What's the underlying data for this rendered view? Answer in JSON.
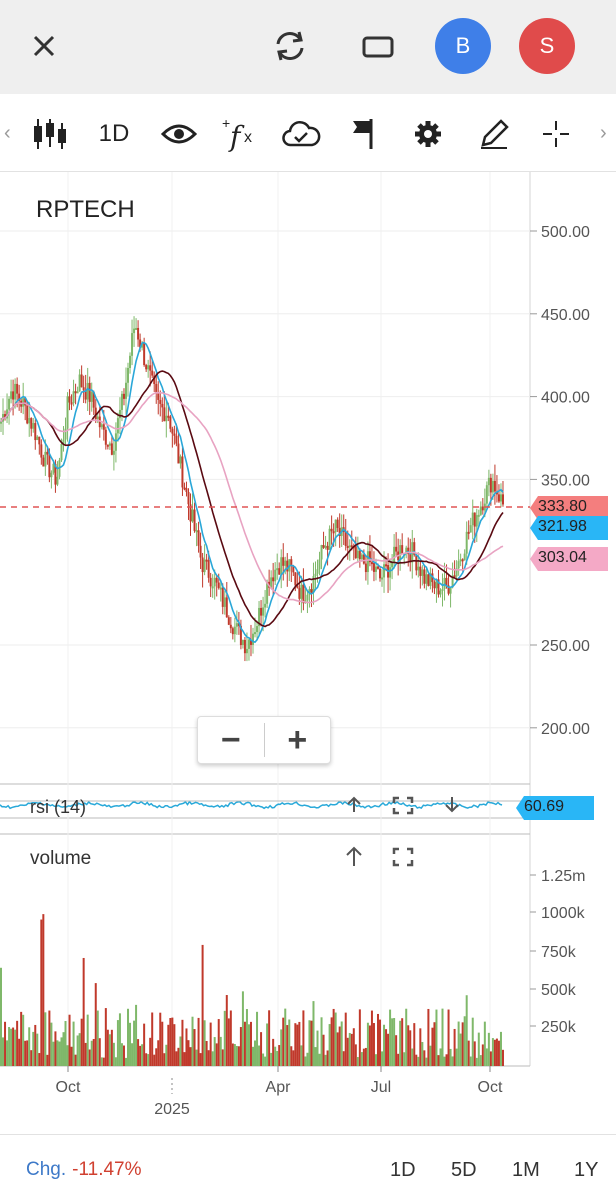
{
  "topbar": {
    "avatar_b": "B",
    "avatar_s": "S",
    "avatar_b_color": "#3f7fe8",
    "avatar_s_color": "#e04b4b"
  },
  "toolbar": {
    "interval": "1D",
    "icons": [
      "candlestick-icon",
      "eye-icon",
      "function-icon",
      "cloud-check-icon",
      "flag-icon",
      "gear-icon",
      "pencil-icon",
      "crosshair-icon"
    ]
  },
  "chart": {
    "symbol": "RPTECH",
    "last_price": "333.80",
    "ema_label": "321.98",
    "sma_label": "303.04",
    "rsi_name": "rsi (14)",
    "rsi_value": "60.69",
    "volume_name": "volume",
    "colors": {
      "up": "#7fb86a",
      "down": "#c0392b",
      "ema_fast": "#2aa7d8",
      "ma_dark": "#5a0a12",
      "ma_pink": "#e8a3c2",
      "last_price_tag": "#f47e7e",
      "ema_tag": "#29b6f6",
      "sma_tag": "#f4a9c6"
    }
  },
  "chart_data": {
    "type": "candlestick",
    "y_axis": {
      "ticks": [
        "500.00",
        "450.00",
        "400.00",
        "350.00",
        "250.00",
        "200.00"
      ],
      "range": [
        165,
        520
      ]
    },
    "volume_axis": {
      "ticks": [
        "1.25m",
        "1000k",
        "750k",
        "500k",
        "250k"
      ]
    },
    "x_ticks": [
      "Oct",
      "Apr",
      "Jul",
      "Oct"
    ],
    "x_year": "2025",
    "approx_close_path": [
      385,
      405,
      395,
      380,
      360,
      350,
      395,
      410,
      400,
      380,
      370,
      400,
      445,
      420,
      395,
      390,
      360,
      330,
      300,
      290,
      275,
      260,
      250,
      265,
      290,
      300,
      295,
      280,
      290,
      310,
      320,
      310,
      300,
      300,
      290,
      300,
      310,
      305,
      290,
      285,
      285,
      300,
      320,
      335,
      350,
      335
    ]
  },
  "bottombar": {
    "change_label": "Chg.",
    "change_value": "-11.47%",
    "ranges": [
      "1D",
      "5D",
      "1M",
      "1Y"
    ]
  }
}
